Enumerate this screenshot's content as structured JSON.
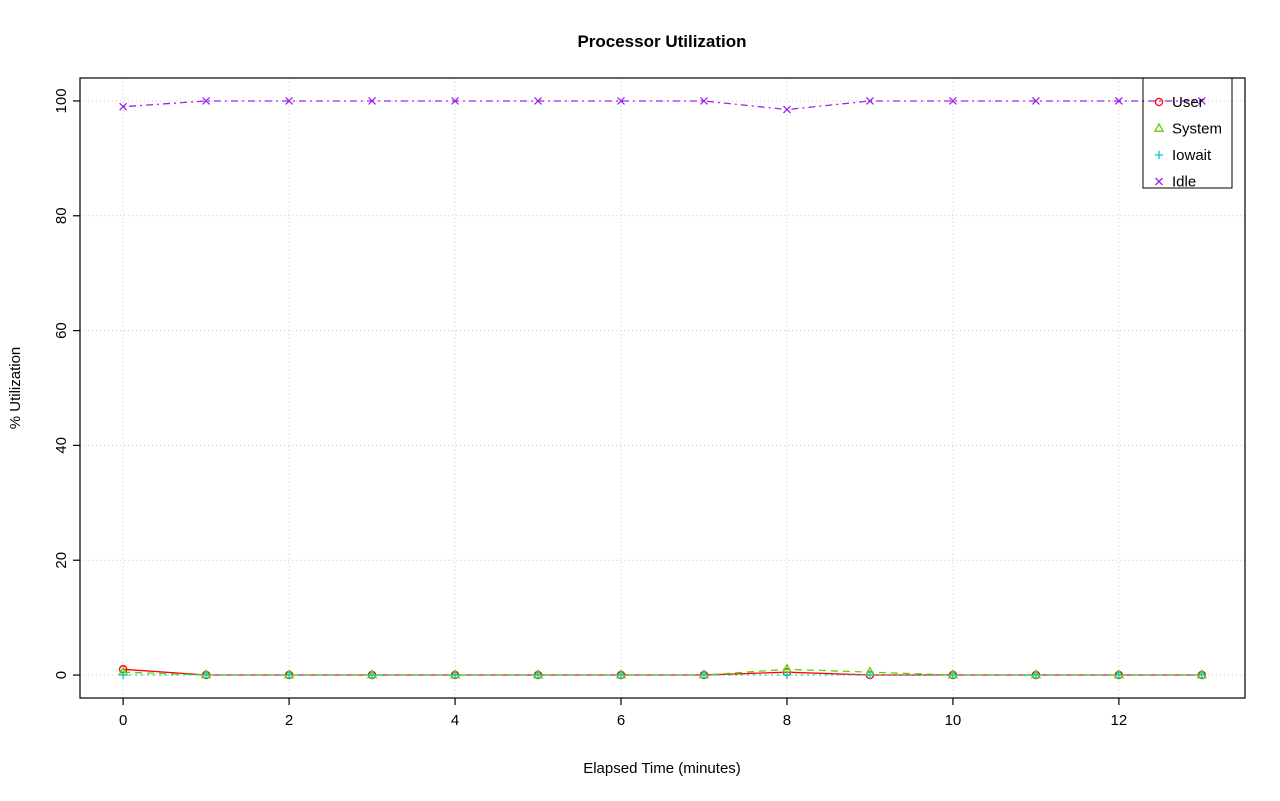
{
  "chart_data": {
    "type": "line",
    "title": "Processor Utilization",
    "xlabel": "Elapsed Time (minutes)",
    "ylabel": "% Utilization",
    "x": [
      0,
      1,
      2,
      3,
      4,
      5,
      6,
      7,
      8,
      9,
      10,
      11,
      12,
      13
    ],
    "series": [
      {
        "name": "User",
        "color": "#FF0000",
        "marker": "circle",
        "linestyle": "solid",
        "values": [
          1,
          0,
          0,
          0,
          0,
          0,
          0,
          0,
          0.5,
          0,
          0,
          0,
          0,
          0
        ]
      },
      {
        "name": "System",
        "color": "#66CC00",
        "marker": "triangle",
        "linestyle": "dashed",
        "values": [
          0.5,
          0,
          0,
          0,
          0,
          0,
          0,
          0,
          1,
          0.5,
          0,
          0,
          0,
          0
        ]
      },
      {
        "name": "Iowait",
        "color": "#00CED1",
        "marker": "plus",
        "linestyle": "dotted",
        "values": [
          0,
          0,
          0,
          0,
          0,
          0,
          0,
          0,
          0,
          0,
          0,
          0,
          0,
          0
        ]
      },
      {
        "name": "Idle",
        "color": "#A020F0",
        "marker": "x",
        "linestyle": "dashdot",
        "values": [
          99,
          100,
          100,
          100,
          100,
          100,
          100,
          100,
          98.5,
          100,
          100,
          100,
          100,
          100
        ]
      }
    ],
    "xlim": [
      0,
      13
    ],
    "ylim": [
      0,
      100
    ],
    "xticks": [
      0,
      2,
      4,
      6,
      8,
      10,
      12
    ],
    "yticks": [
      0,
      20,
      40,
      60,
      80,
      100
    ],
    "grid": "dotted",
    "legend_position": "top-right",
    "legend": [
      "User",
      "System",
      "Iowait",
      "Idle"
    ]
  },
  "colors": {
    "background": "#FFFFFF",
    "axis": "#000000",
    "grid": "#C8C8C8"
  }
}
